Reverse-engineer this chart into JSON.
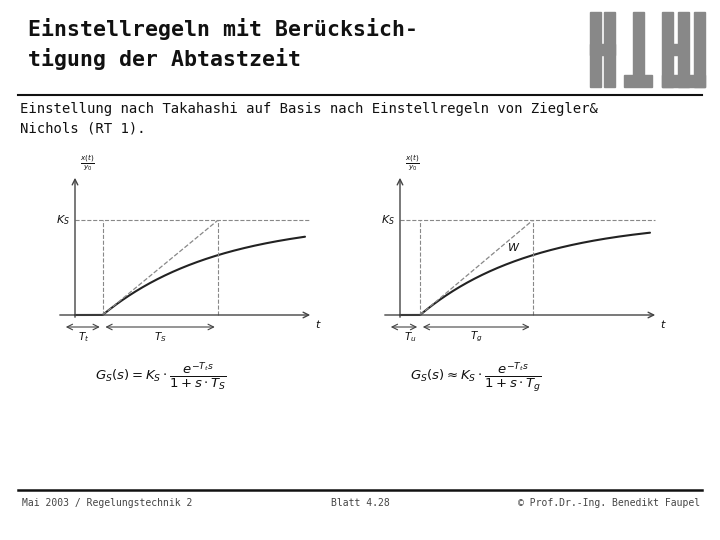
{
  "bg_color": "#ffffff",
  "title_line1": "Einstellregeln mit Berücksich-",
  "title_line2": "tigung der Abtastzeit",
  "subtitle_line1": "Einstellung nach Takahashi auf Basis nach Einstellregeln von Ziegler&",
  "subtitle_line2": "Nichols (RT 1).",
  "footer_left": "Mai 2003 / Regelungstechnik 2",
  "footer_center": "Blatt 4.28",
  "footer_right": "© Prof.Dr.-Ing. Benedikt Faupel",
  "graph_line_color": "#222222",
  "graph_dashed_color": "#888888",
  "graph_axis_color": "#444444",
  "logo_gray": "#888888"
}
